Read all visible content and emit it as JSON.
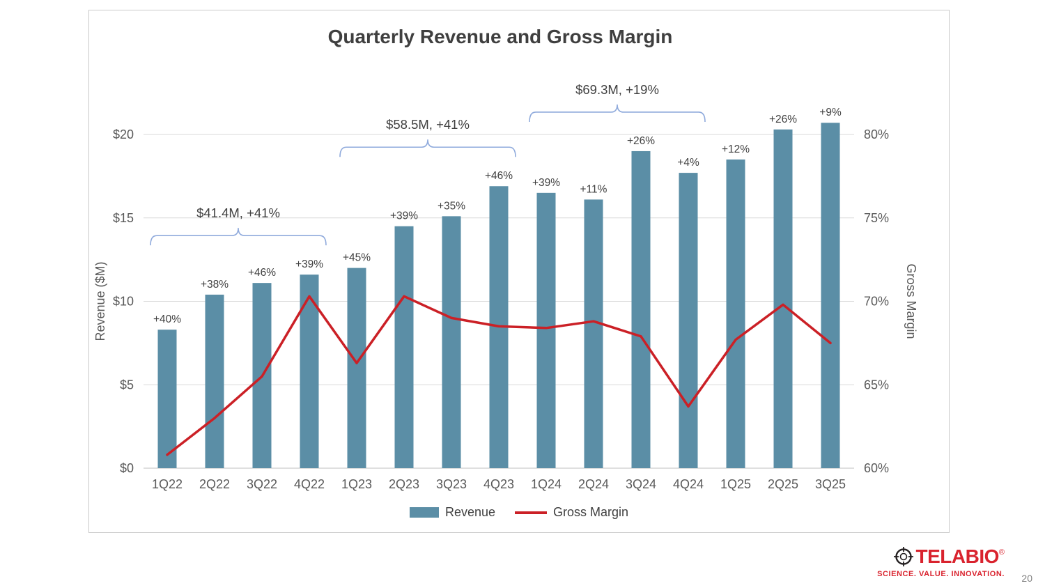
{
  "page": {
    "number": "20"
  },
  "logo": {
    "brand_tela": "TELA",
    "brand_bio": "BIO",
    "registered": "®",
    "tagline": "SCIENCE. VALUE. INNOVATION.",
    "brand_color": "#d9232e"
  },
  "chart_data": {
    "type": "bar",
    "combo": "bar+line",
    "title": "Quarterly Revenue and Gross Margin",
    "categories": [
      "1Q22",
      "2Q22",
      "3Q22",
      "4Q22",
      "1Q23",
      "2Q23",
      "3Q23",
      "4Q23",
      "1Q24",
      "2Q24",
      "3Q24",
      "4Q24",
      "1Q25",
      "2Q25",
      "3Q25"
    ],
    "series": [
      {
        "name": "Revenue",
        "type": "bar",
        "axis": "left",
        "color": "#5b8ea6",
        "values": [
          8.3,
          10.4,
          11.1,
          11.6,
          12.0,
          14.5,
          15.1,
          16.9,
          16.5,
          16.1,
          19.0,
          17.7,
          18.5,
          20.3,
          20.7
        ],
        "labels": [
          "+40%",
          "+38%",
          "+46%",
          "+39%",
          "+45%",
          "+39%",
          "+35%",
          "+46%",
          "+39%",
          "+11%",
          "+26%",
          "+4%",
          "+12%",
          "+26%",
          "+9%"
        ]
      },
      {
        "name": "Gross Margin",
        "type": "line",
        "axis": "right",
        "color": "#cb2026",
        "values": [
          60.8,
          63.0,
          65.5,
          70.3,
          66.3,
          70.3,
          69.0,
          68.5,
          68.4,
          68.8,
          67.9,
          63.7,
          67.7,
          69.8,
          67.5
        ]
      }
    ],
    "left_axis": {
      "label": "Revenue ($M)",
      "min": 0,
      "max": 20,
      "step": 5,
      "ticks": [
        "$0",
        "$5",
        "$10",
        "$15",
        "$20"
      ]
    },
    "right_axis": {
      "label": "Gross Margin",
      "min": 60,
      "max": 80,
      "step": 5,
      "ticks": [
        "60%",
        "65%",
        "70%",
        "75%",
        "80%"
      ]
    },
    "annotations": [
      {
        "label": "$41.4M, +41%",
        "from": "1Q22",
        "to": "4Q22"
      },
      {
        "label": "$58.5M, +41%",
        "from": "1Q23",
        "to": "4Q23"
      },
      {
        "label": "$69.3M, +19%",
        "from": "1Q24",
        "to": "4Q24"
      }
    ],
    "annotation_color": "#8faadc",
    "grid": true,
    "grid_color": "#d9d9d9",
    "legend_position": "bottom",
    "legend": [
      {
        "label": "Revenue",
        "swatch": "bar",
        "color": "#5b8ea6"
      },
      {
        "label": "Gross Margin",
        "swatch": "line",
        "color": "#cb2026"
      }
    ]
  }
}
